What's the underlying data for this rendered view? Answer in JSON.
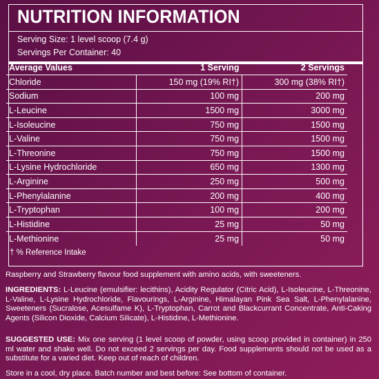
{
  "panel": {
    "title": "NUTRITION INFORMATION",
    "serving_size": "Serving Size: 1 level scoop (7.4 g)",
    "servings_per_container": "Servings Per Container: 40"
  },
  "table": {
    "headers": [
      "Average Values",
      "1 Serving",
      "2 Servings"
    ],
    "rows": [
      {
        "name": "Chloride",
        "one": "150 mg (19% RI†)",
        "two": "300 mg (38% RI†)"
      },
      {
        "name": "Sodium",
        "one": "100 mg",
        "two": "200 mg"
      },
      {
        "name": "L-Leucine",
        "one": "1500 mg",
        "two": "3000 mg"
      },
      {
        "name": "L-Isoleucine",
        "one": "750 mg",
        "two": "1500 mg"
      },
      {
        "name": "L-Valine",
        "one": "750 mg",
        "two": "1500 mg"
      },
      {
        "name": "L-Threonine",
        "one": "750 mg",
        "two": "1500 mg"
      },
      {
        "name": "L-Lysine Hydrochloride",
        "one": "650 mg",
        "two": "1300 mg"
      },
      {
        "name": "L-Arginine",
        "one": "250 mg",
        "two": "500 mg"
      },
      {
        "name": "L-Phenylalanine",
        "one": "200 mg",
        "two": "400 mg"
      },
      {
        "name": "L-Tryptophan",
        "one": "100 mg",
        "two": "200 mg"
      },
      {
        "name": "L-Histidine",
        "one": "25 mg",
        "two": "50 mg"
      },
      {
        "name": "L-Methionine",
        "one": "25 mg",
        "two": "50 mg"
      }
    ],
    "footnote": "† % Reference Intake"
  },
  "description": "Raspberry and Strawberry flavour food supplement with amino acids, with sweeteners.",
  "ingredients": {
    "label": "INGREDIENTS:",
    "text": " L-Leucine (emulsifier: lecithins), Acidity Regulator (Citric Acid), L-Isoleucine, L-Threonine, L-Valine, L-Lysine Hydrochloride, Flavourings, L-Arginine, Himalayan Pink Sea Salt, L-Phenylalanine, Sweeteners (Sucralose, Acesulfame K), L-Tryptophan, Carrot and Blackcurrant Concentrate, Anti-Caking Agents (Silicon Dioxide, Calcium Silicate), L-Histidine, L-Methionine."
  },
  "suggested_use": {
    "label": "SUGGESTED USE:",
    "text": " Mix one serving (1 level scoop of powder, using scoop provided in container) in 250 ml water and shake well. Do not exceed 2 servings per day. Food supplements should not be used as a substitute for a varied diet. Keep out of reach of children."
  },
  "storage": "Store in a cool, dry place. Batch number and best before: See bottom of container."
}
